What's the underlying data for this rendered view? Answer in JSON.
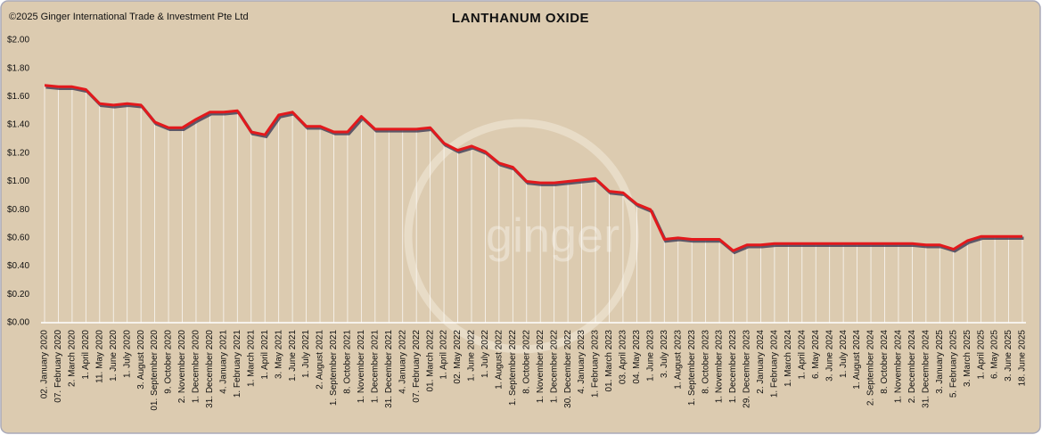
{
  "chart_data": {
    "type": "line",
    "title": "LANTHANUM OXIDE",
    "copyright": "©2025 Ginger International Trade & Investment Pte Ltd",
    "watermark": "ginger",
    "categories": [
      "02. January 2020",
      "07. February 2020",
      "2. March 2020",
      "1. April 2020",
      "11. May 2020",
      "1. June 2020",
      "1. July 2020",
      "3. August 2020",
      "01. September 2020",
      "9. October 2020",
      "2. November 2020",
      "1. December 2020",
      "31. December 2020",
      "4. January 2021",
      "1. February 2021",
      "1. March 2021",
      "1. April 2021",
      "3. May 2021",
      "1. June 2021",
      "1. July 2021",
      "2. August 2021",
      "1. September 2021",
      "8. October 2021",
      "1. November 2021",
      "1. December 2021",
      "31. December 2021",
      "4. January 2022",
      "07. February 2022",
      "01. March 2022",
      "1. April 2022",
      "02. May 2022",
      "1. June 2022",
      "1. July 2022",
      "1. August 2022",
      "1. September 2022",
      "8. October 2022",
      "1. November 2022",
      "1. December 2022",
      "30. December 2022",
      "4. January 2023",
      "1. February 2023",
      "01. March 2023",
      "03. April 2023",
      "04. May 2023",
      "1. June 2023",
      "3. July 2023",
      "1. August 2023",
      "1. September 2023",
      "8. October 2023",
      "1. November 2023",
      "1. December 2023",
      "29. December 2023",
      "2. January 2024",
      "1. February 2024",
      "1. March 2024",
      "1. April 2024",
      "6. May 2024",
      "3. June 2024",
      "1. July 2024",
      "1. August 2024",
      "2. September 2024",
      "8. October 2024",
      "1. November 2024",
      "2. December 2024",
      "31. December 2024",
      "3. January 2025",
      "5. February 2025",
      "3. March 2025",
      "1. April 2025",
      "6. May 2025",
      "3. June 2025",
      "18. June 2025"
    ],
    "values": [
      1.68,
      1.67,
      1.67,
      1.65,
      1.55,
      1.54,
      1.55,
      1.54,
      1.42,
      1.38,
      1.38,
      1.44,
      1.49,
      1.49,
      1.5,
      1.35,
      1.33,
      1.47,
      1.49,
      1.39,
      1.39,
      1.35,
      1.35,
      1.46,
      1.37,
      1.37,
      1.37,
      1.37,
      1.38,
      1.27,
      1.22,
      1.25,
      1.21,
      1.13,
      1.1,
      1.0,
      0.99,
      0.99,
      1.0,
      1.01,
      1.02,
      0.93,
      0.92,
      0.84,
      0.8,
      0.59,
      0.6,
      0.59,
      0.59,
      0.59,
      0.51,
      0.55,
      0.55,
      0.56,
      0.56,
      0.56,
      0.56,
      0.56,
      0.56,
      0.56,
      0.56,
      0.56,
      0.56,
      0.56,
      0.55,
      0.55,
      0.52,
      0.58,
      0.61,
      0.61,
      0.61,
      0.61
    ],
    "color": "#e3191c",
    "ylim": [
      0,
      2
    ],
    "yticks": [
      {
        "value": 0,
        "label": "$0.00"
      },
      {
        "value": 0.2,
        "label": "$0.20"
      },
      {
        "value": 0.4,
        "label": "$0.40"
      },
      {
        "value": 0.6,
        "label": "$0.60"
      },
      {
        "value": 0.8,
        "label": "$0.80"
      },
      {
        "value": 1,
        "label": "$1.00"
      },
      {
        "value": 1.2,
        "label": "$1.20"
      },
      {
        "value": 1.4,
        "label": "$1.40"
      },
      {
        "value": 1.6,
        "label": "$1.60"
      },
      {
        "value": 1.8,
        "label": "$1.80"
      },
      {
        "value": 2,
        "label": "$2.00"
      }
    ],
    "drop_lines": true
  }
}
